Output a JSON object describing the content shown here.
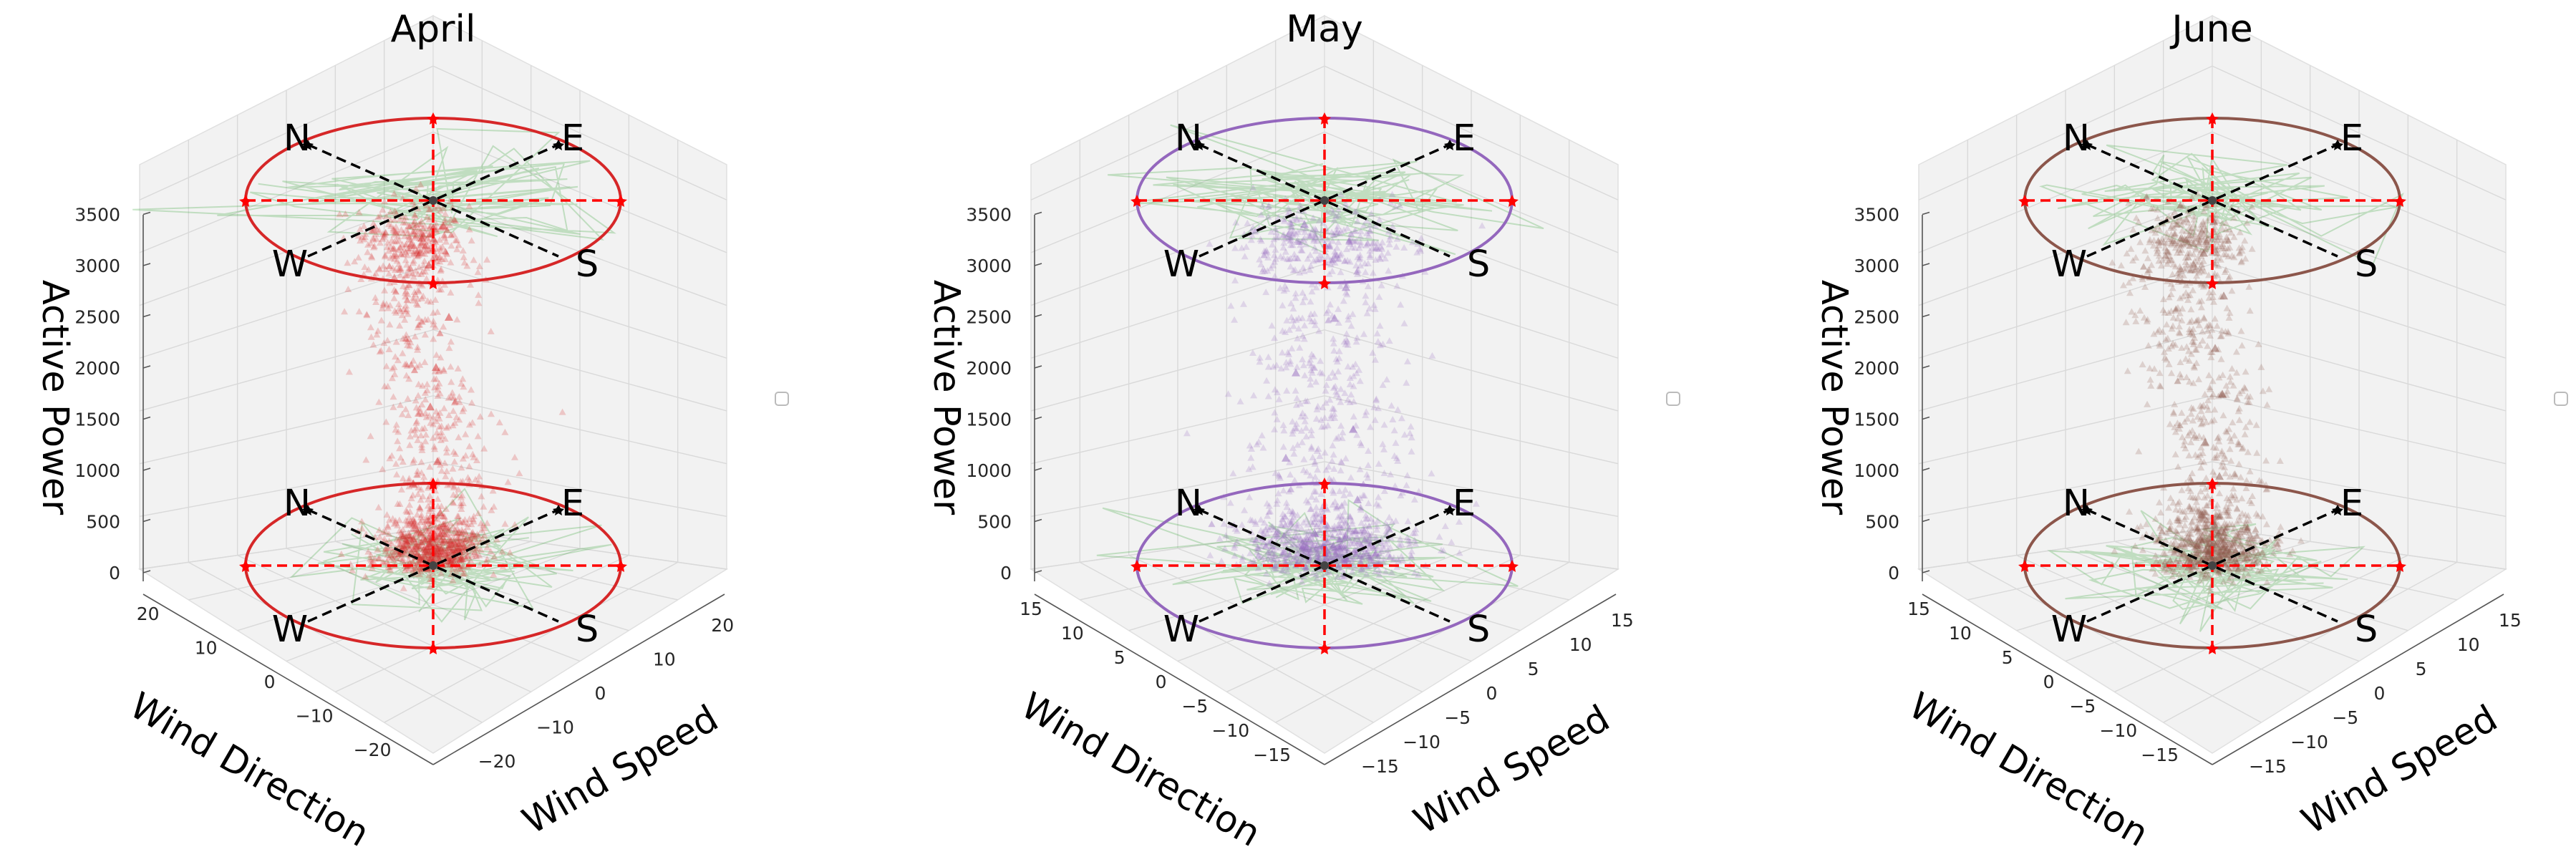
{
  "chart_data": [
    {
      "type": "scatter",
      "title": "April",
      "color": "#d62728",
      "zlabel": "Active Power",
      "xlabel": "Wind Speed",
      "ylabel": "Wind Direction",
      "zticks": [
        "0",
        "500",
        "1000",
        "1500",
        "2000",
        "2500",
        "3000",
        "3500"
      ],
      "xticks": [
        "−20",
        "−10",
        "0",
        "10",
        "20"
      ],
      "yticks": [
        "−20",
        "−10",
        "0",
        "10",
        "20"
      ],
      "xlim": [
        -25,
        25
      ],
      "ylim": [
        -25,
        25
      ],
      "zlim": [
        0,
        3800
      ],
      "compass": [
        "N",
        "E",
        "S",
        "W"
      ],
      "legend": "",
      "series": [
        {
          "values": [
            [
              0,
              0,
              40
            ],
            [
              1,
              2,
              120
            ],
            [
              -1,
              1,
              300
            ],
            [
              2,
              -1,
              520
            ],
            [
              -2,
              -2,
              800
            ],
            [
              0,
              1,
              1100
            ],
            [
              1,
              -2,
              1600
            ],
            [
              -1,
              2,
              2100
            ],
            [
              2,
              1,
              2600
            ],
            [
              0,
              -1,
              3100
            ],
            [
              -2,
              0,
              3400
            ],
            [
              1,
              1,
              3550
            ]
          ]
        }
      ]
    },
    {
      "type": "scatter",
      "title": "May",
      "color": "#9467bd",
      "zlabel": "Active Power",
      "xlabel": "Wind Speed",
      "ylabel": "Wind Direction",
      "zticks": [
        "0",
        "500",
        "1000",
        "1500",
        "2000",
        "2500",
        "3000",
        "3500"
      ],
      "xticks": [
        "−15",
        "−10",
        "−5",
        "0",
        "5",
        "10",
        "15"
      ],
      "yticks": [
        "−15",
        "−10",
        "−5",
        "0",
        "5",
        "10",
        "15"
      ],
      "xlim": [
        -17,
        17
      ],
      "ylim": [
        -17,
        17
      ],
      "zlim": [
        0,
        3800
      ],
      "compass": [
        "N",
        "E",
        "S",
        "W"
      ],
      "legend": "",
      "series": [
        {
          "values": [
            [
              0,
              0,
              30
            ],
            [
              3,
              -2,
              150
            ],
            [
              -4,
              3,
              400
            ],
            [
              5,
              1,
              700
            ],
            [
              -3,
              -5,
              1000
            ],
            [
              2,
              4,
              1500
            ],
            [
              -5,
              0,
              2000
            ],
            [
              4,
              -3,
              2500
            ],
            [
              0,
              5,
              3000
            ],
            [
              -2,
              -2,
              3500
            ]
          ]
        }
      ]
    },
    {
      "type": "scatter",
      "title": "June",
      "color": "#8c564b",
      "zlabel": "Active Power",
      "xlabel": "Wind Speed",
      "ylabel": "Wind Direction",
      "zticks": [
        "0",
        "500",
        "1000",
        "1500",
        "2000",
        "2500",
        "3000",
        "3500"
      ],
      "xticks": [
        "−15",
        "−10",
        "−5",
        "0",
        "5",
        "10",
        "15"
      ],
      "yticks": [
        "−15",
        "−10",
        "−5",
        "0",
        "5",
        "10",
        "15"
      ],
      "xlim": [
        -18,
        18
      ],
      "ylim": [
        -18,
        18
      ],
      "zlim": [
        0,
        3800
      ],
      "compass": [
        "N",
        "E",
        "S",
        "W"
      ],
      "legend": "",
      "series": [
        {
          "values": [
            [
              0,
              0,
              50
            ],
            [
              1,
              2,
              200
            ],
            [
              -1,
              -1,
              500
            ],
            [
              2,
              -1,
              900
            ],
            [
              -2,
              1,
              1300
            ],
            [
              1,
              1,
              1800
            ],
            [
              -1,
              2,
              2300
            ],
            [
              2,
              0,
              2800
            ],
            [
              0,
              -2,
              3200
            ],
            [
              1,
              -1,
              3550
            ]
          ]
        }
      ]
    }
  ]
}
